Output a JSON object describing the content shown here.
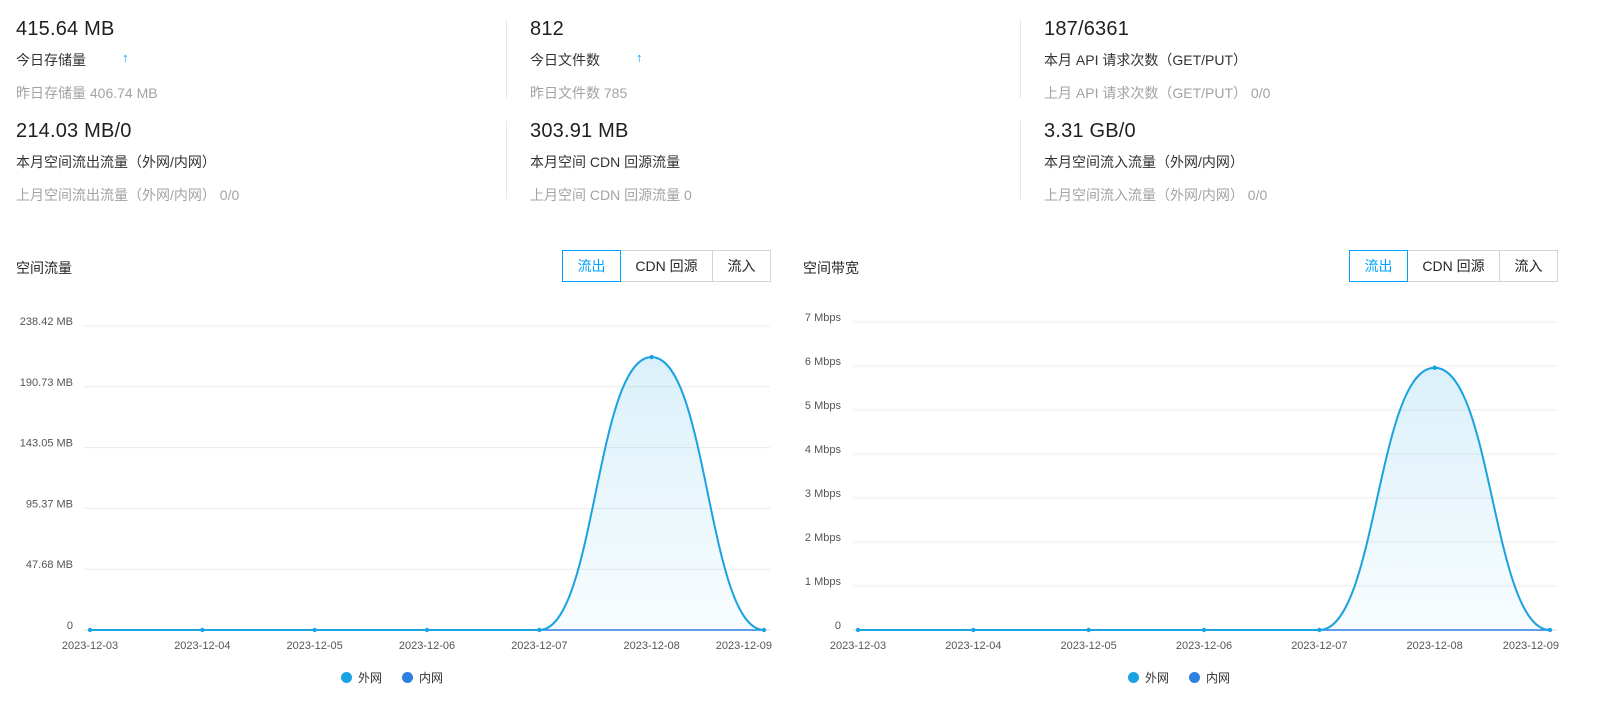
{
  "colors": {
    "accent": "#00a4ff",
    "series_external": "#1aa3e0",
    "series_internal": "#2f7fe0"
  },
  "stats": [
    {
      "value": "415.64 MB",
      "label": "今日存储量",
      "trend": "↑",
      "prev": "昨日存储量 406.74 MB"
    },
    {
      "value": "812",
      "label": "今日文件数",
      "trend": "↑",
      "prev": "昨日文件数 785"
    },
    {
      "value": "187/6361",
      "label": "本月 API 请求次数（GET/PUT）",
      "trend": "",
      "prev": "上月 API 请求次数（GET/PUT） 0/0"
    },
    {
      "value": "214.03 MB/0",
      "label": "本月空间流出流量（外网/内网）",
      "trend": "",
      "prev": "上月空间流出流量（外网/内网） 0/0"
    },
    {
      "value": "303.91 MB",
      "label": "本月空间 CDN 回源流量",
      "trend": "",
      "prev": "上月空间 CDN 回源流量 0"
    },
    {
      "value": "3.31 GB/0",
      "label": "本月空间流入流量（外网/内网）",
      "trend": "",
      "prev": "上月空间流入流量（外网/内网） 0/0"
    }
  ],
  "panels": [
    {
      "title": "空间流量",
      "tabs": [
        "流出",
        "CDN 回源",
        "流入"
      ],
      "active_tab": "流出"
    },
    {
      "title": "空间带宽",
      "tabs": [
        "流出",
        "CDN 回源",
        "流入"
      ],
      "active_tab": "流出"
    }
  ],
  "legend": [
    {
      "label": "外网",
      "color": "#1aa3e0"
    },
    {
      "label": "内网",
      "color": "#2f7fe0"
    }
  ],
  "chart_data": [
    {
      "type": "area",
      "title": "空间流量",
      "x": [
        "2023-12-03",
        "2023-12-04",
        "2023-12-05",
        "2023-12-06",
        "2023-12-07",
        "2023-12-08",
        "2023-12-09"
      ],
      "y_tick_labels": [
        "0",
        "47.68 MB",
        "95.37 MB",
        "143.05 MB",
        "190.73 MB",
        "238.42 MB"
      ],
      "y_tick_values": [
        0,
        47.68,
        95.37,
        143.05,
        190.73,
        238.42
      ],
      "ylim": [
        0,
        238.42
      ],
      "y_unit": "MB",
      "grid": true,
      "legend_position": "bottom-center",
      "series": [
        {
          "name": "外网",
          "values": [
            0,
            0,
            0,
            0,
            0,
            214.03,
            0
          ]
        },
        {
          "name": "内网",
          "values": [
            0,
            0,
            0,
            0,
            0,
            0,
            0
          ]
        }
      ]
    },
    {
      "type": "area",
      "title": "空间带宽",
      "x": [
        "2023-12-03",
        "2023-12-04",
        "2023-12-05",
        "2023-12-06",
        "2023-12-07",
        "2023-12-08",
        "2023-12-09"
      ],
      "y_tick_labels": [
        "0",
        "1 Mbps",
        "2 Mbps",
        "3 Mbps",
        "4 Mbps",
        "5 Mbps",
        "6 Mbps",
        "7 Mbps"
      ],
      "y_tick_values": [
        0,
        1,
        2,
        3,
        4,
        5,
        6,
        7
      ],
      "ylim": [
        0,
        7
      ],
      "y_unit": "Mbps",
      "grid": true,
      "legend_position": "bottom-center",
      "series": [
        {
          "name": "外网",
          "values": [
            0,
            0,
            0,
            0,
            0,
            5.96,
            0
          ]
        },
        {
          "name": "内网",
          "values": [
            0,
            0,
            0,
            0,
            0,
            0,
            0
          ]
        }
      ]
    }
  ]
}
